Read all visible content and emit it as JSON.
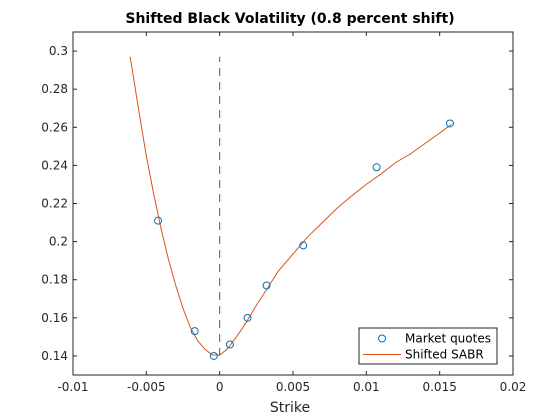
{
  "chart_data": {
    "type": "line",
    "title": "Shifted Black Volatility (0.8 percent shift)",
    "xlabel": "Strike",
    "ylabel": "",
    "xlim": [
      -0.01,
      0.02
    ],
    "ylim": [
      0.13,
      0.31
    ],
    "xticks": [
      -0.01,
      -0.005,
      0,
      0.005,
      0.01,
      0.015,
      0.02
    ],
    "xtick_labels": [
      "-0.01",
      "-0.005",
      "0",
      "0.005",
      "0.01",
      "0.015",
      "0.02"
    ],
    "yticks": [
      0.14,
      0.16,
      0.18,
      0.2,
      0.22,
      0.24,
      0.26,
      0.28,
      0.3
    ],
    "ytick_labels": [
      "0.14",
      "0.16",
      "0.18",
      "0.2",
      "0.22",
      "0.24",
      "0.26",
      "0.28",
      "0.3"
    ],
    "grid": false,
    "legend_position": "bottom-right",
    "series": [
      {
        "name": "Market quotes",
        "kind": "scatter",
        "marker": "circle",
        "color": "#0072BD",
        "x": [
          -0.0042,
          -0.0017,
          -0.0004,
          0.0007,
          0.0019,
          0.0032,
          0.0057,
          0.0107,
          0.0157
        ],
        "y": [
          0.211,
          0.153,
          0.14,
          0.146,
          0.16,
          0.177,
          0.198,
          0.239,
          0.262
        ]
      },
      {
        "name": "Shifted SABR",
        "kind": "line",
        "color": "#D95319",
        "x": [
          -0.0061,
          -0.0055,
          -0.005,
          -0.0045,
          -0.004,
          -0.0035,
          -0.003,
          -0.0025,
          -0.002,
          -0.0015,
          -0.001,
          -0.0005,
          0,
          0.0005,
          0.001,
          0.0015,
          0.002,
          0.0025,
          0.003,
          0.0035,
          0.004,
          0.005,
          0.006,
          0.007,
          0.008,
          0.009,
          0.01,
          0.011,
          0.012,
          0.013,
          0.014,
          0.015,
          0.0158
        ],
        "y": [
          0.297,
          0.268,
          0.245,
          0.225,
          0.207,
          0.191,
          0.177,
          0.165,
          0.155,
          0.148,
          0.1435,
          0.1405,
          0.1405,
          0.1435,
          0.1485,
          0.154,
          0.16,
          0.1665,
          0.1725,
          0.1785,
          0.1845,
          0.1935,
          0.2025,
          0.21,
          0.2175,
          0.224,
          0.23,
          0.2355,
          0.2415,
          0.246,
          0.2515,
          0.257,
          0.2615
        ]
      }
    ],
    "reference_line": {
      "x": 0,
      "y_range": [
        0.14,
        0.297
      ],
      "style": "dashed",
      "color": "#0072BD"
    }
  }
}
